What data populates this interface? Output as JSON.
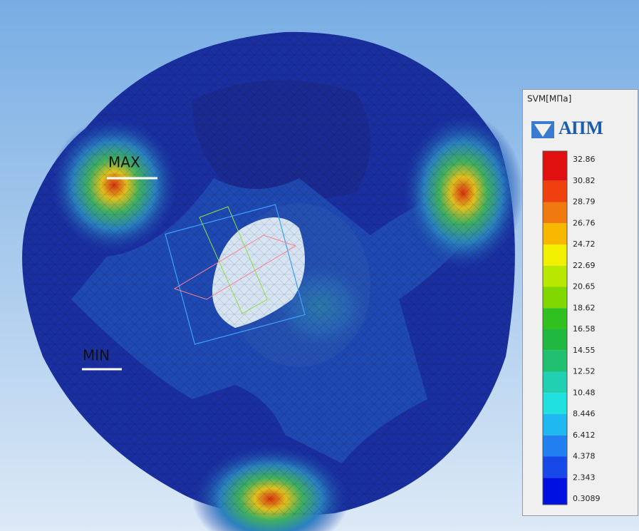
{
  "labels": {
    "max": "MAX",
    "min": "MIN"
  },
  "legend": {
    "title": "SVM[МПа]",
    "logo": "АПМ",
    "values": [
      "32.86",
      "30.82",
      "28.79",
      "26.76",
      "24.72",
      "22.69",
      "20.65",
      "18.62",
      "16.58",
      "14.55",
      "12.52",
      "10.48",
      "8.446",
      "6.412",
      "4.378",
      "2.343",
      "0.3089"
    ]
  }
}
